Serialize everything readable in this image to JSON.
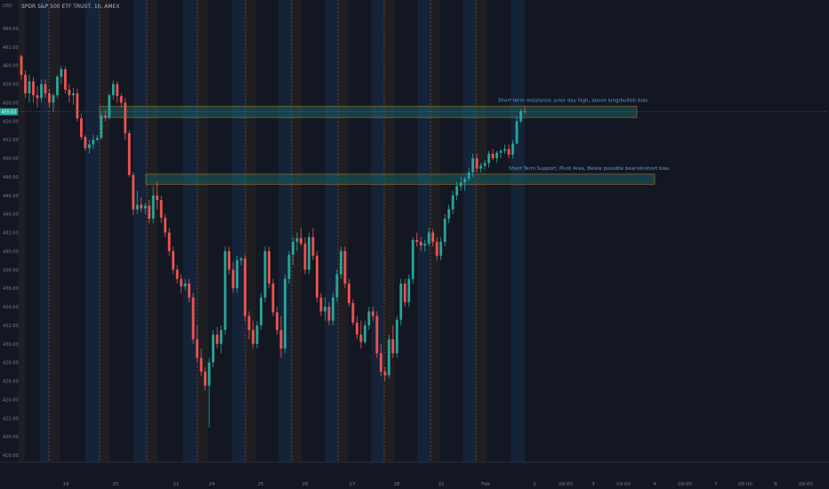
{
  "header": {
    "currency": "USD",
    "title": "SPDR S&P 500 ETF TRUST, 1h, AMEX"
  },
  "chart_data": {
    "type": "candlestick",
    "ylim": [
      416,
      465
    ],
    "y_ticks": [
      418,
      420,
      422,
      424,
      426,
      428,
      430,
      432,
      434,
      436,
      438,
      440,
      442,
      444,
      446,
      448,
      450,
      452,
      454,
      456,
      458,
      460,
      462,
      464
    ],
    "x_ticks": [
      "19",
      "20",
      "21",
      "24",
      "25",
      "26",
      "27",
      "28",
      "31",
      "Feb",
      "2",
      "09:00",
      "3",
      "09:00",
      "4",
      "09:00",
      "7",
      "09:00",
      "8",
      "09:00"
    ],
    "last_price": "455.02",
    "session_hours_per_day": 16,
    "trading_days": [
      "18",
      "19",
      "20",
      "21",
      "24",
      "25",
      "26",
      "27",
      "28",
      "31",
      "Feb 1"
    ],
    "candles_ohlc": [
      [
        461.0,
        461.2,
        458.5,
        459.0
      ],
      [
        459.0,
        459.5,
        456.5,
        457.0
      ],
      [
        457.0,
        459.0,
        456.0,
        458.3
      ],
      [
        458.3,
        458.8,
        456.0,
        456.8
      ],
      [
        456.8,
        457.8,
        455.5,
        456.5
      ],
      [
        456.5,
        458.5,
        456.0,
        458.0
      ],
      [
        458.0,
        458.5,
        456.5,
        457.0
      ],
      [
        457.0,
        457.5,
        455.5,
        456.0
      ],
      [
        456.0,
        457.0,
        455.0,
        456.8
      ],
      [
        456.8,
        459.0,
        456.5,
        458.8
      ],
      [
        458.8,
        460.0,
        458.0,
        459.6
      ],
      [
        459.6,
        459.9,
        457.0,
        457.4
      ],
      [
        457.4,
        458.0,
        456.0,
        456.8
      ],
      [
        456.8,
        457.6,
        455.8,
        457.0
      ],
      [
        457.0,
        457.5,
        454.0,
        454.3
      ],
      [
        454.3,
        454.8,
        452.0,
        452.3
      ],
      [
        452.3,
        452.5,
        450.8,
        451.1
      ],
      [
        451.1,
        452.0,
        450.5,
        451.5
      ],
      [
        451.5,
        452.5,
        451.0,
        452.0
      ],
      [
        452.0,
        452.5,
        451.8,
        452.2
      ],
      [
        452.2,
        455.0,
        452.0,
        454.6
      ],
      [
        454.6,
        455.2,
        454.0,
        454.4
      ],
      [
        454.4,
        457.0,
        454.2,
        456.8
      ],
      [
        456.8,
        458.4,
        456.3,
        458.0
      ],
      [
        458.0,
        458.3,
        456.0,
        456.7
      ],
      [
        456.7,
        457.0,
        455.5,
        456.0
      ],
      [
        456.0,
        456.5,
        452.0,
        452.7
      ],
      [
        452.7,
        453.0,
        448.0,
        448.2
      ],
      [
        448.2,
        448.5,
        443.9,
        444.5
      ],
      [
        444.5,
        446.5,
        444.0,
        445.0
      ],
      [
        445.0,
        445.8,
        444.2,
        444.6
      ],
      [
        444.6,
        445.2,
        444.0,
        444.9
      ],
      [
        444.9,
        445.5,
        443.0,
        443.5
      ],
      [
        443.5,
        447.0,
        443.0,
        446.0
      ],
      [
        446.0,
        447.5,
        444.5,
        445.5
      ],
      [
        445.5,
        446.0,
        443.0,
        443.6
      ],
      [
        443.6,
        444.0,
        441.5,
        442.0
      ],
      [
        442.0,
        442.5,
        439.5,
        440.0
      ],
      [
        440.0,
        440.5,
        437.5,
        438.0
      ],
      [
        438.0,
        438.5,
        436.5,
        437.0
      ],
      [
        437.0,
        437.5,
        435.5,
        436.2
      ],
      [
        436.2,
        437.0,
        435.8,
        436.5
      ],
      [
        436.5,
        437.0,
        434.5,
        435.0
      ],
      [
        435.0,
        435.5,
        430.0,
        430.5
      ],
      [
        430.5,
        432.0,
        428.0,
        428.5
      ],
      [
        428.5,
        429.5,
        426.5,
        427.0
      ],
      [
        427.0,
        427.5,
        425.0,
        425.5
      ],
      [
        425.5,
        428.5,
        421.0,
        428.0
      ],
      [
        428.0,
        431.5,
        427.5,
        431.0
      ],
      [
        431.0,
        431.8,
        429.5,
        430.0
      ],
      [
        430.0,
        432.0,
        429.0,
        431.5
      ],
      [
        431.5,
        440.5,
        431.0,
        440.0
      ],
      [
        440.0,
        440.5,
        437.5,
        438.0
      ],
      [
        438.0,
        438.8,
        435.5,
        436.0
      ],
      [
        436.0,
        439.5,
        435.5,
        439.0
      ],
      [
        439.0,
        439.4,
        438.5,
        439.2
      ],
      [
        439.2,
        439.6,
        432.5,
        433.0
      ],
      [
        433.0,
        433.5,
        430.5,
        431.5
      ],
      [
        431.5,
        432.5,
        429.5,
        430.0
      ],
      [
        430.0,
        432.5,
        429.5,
        432.0
      ],
      [
        432.0,
        435.5,
        431.5,
        435.0
      ],
      [
        435.0,
        440.5,
        434.5,
        440.0
      ],
      [
        440.0,
        440.5,
        436.0,
        436.5
      ],
      [
        436.5,
        437.0,
        433.0,
        433.4
      ],
      [
        433.4,
        434.0,
        431.0,
        431.5
      ],
      [
        431.5,
        433.0,
        428.5,
        429.5
      ],
      [
        429.5,
        437.5,
        429.0,
        437.0
      ],
      [
        437.0,
        440.0,
        436.5,
        439.6
      ],
      [
        439.6,
        441.5,
        438.5,
        441.0
      ],
      [
        441.0,
        442.0,
        440.0,
        441.4
      ],
      [
        441.4,
        442.5,
        440.5,
        440.8
      ],
      [
        440.8,
        441.5,
        437.5,
        438.0
      ],
      [
        438.0,
        442.0,
        437.5,
        441.5
      ],
      [
        441.5,
        442.5,
        439.0,
        439.5
      ],
      [
        439.5,
        440.0,
        434.5,
        435.0
      ],
      [
        435.0,
        435.5,
        433.0,
        433.5
      ],
      [
        433.5,
        435.0,
        432.5,
        434.0
      ],
      [
        434.0,
        434.5,
        432.0,
        432.5
      ],
      [
        432.5,
        435.5,
        432.0,
        435.0
      ],
      [
        435.0,
        438.0,
        434.5,
        437.5
      ],
      [
        437.5,
        440.5,
        437.0,
        440.0
      ],
      [
        440.0,
        440.5,
        436.0,
        436.5
      ],
      [
        436.5,
        437.0,
        434.0,
        434.4
      ],
      [
        434.4,
        434.8,
        432.0,
        432.3
      ],
      [
        432.3,
        433.0,
        430.5,
        431.0
      ],
      [
        431.0,
        432.5,
        429.5,
        430.2
      ],
      [
        430.2,
        432.5,
        430.0,
        432.0
      ],
      [
        432.0,
        434.0,
        431.5,
        433.5
      ],
      [
        433.5,
        434.0,
        432.5,
        433.0
      ],
      [
        433.0,
        433.5,
        428.5,
        429.0
      ],
      [
        429.0,
        430.0,
        426.5,
        427.0
      ],
      [
        427.0,
        427.5,
        426.0,
        426.6
      ],
      [
        426.6,
        431.0,
        426.3,
        430.5
      ],
      [
        430.5,
        432.0,
        428.5,
        429.0
      ],
      [
        429.0,
        433.0,
        428.5,
        432.6
      ],
      [
        432.6,
        437.0,
        432.0,
        436.5
      ],
      [
        436.5,
        437.0,
        434.0,
        434.5
      ],
      [
        434.5,
        437.5,
        434.0,
        437.0
      ],
      [
        437.0,
        441.5,
        436.5,
        441.2
      ],
      [
        441.2,
        442.0,
        440.5,
        441.0
      ],
      [
        441.0,
        441.5,
        440.0,
        440.6
      ],
      [
        440.6,
        441.2,
        440.0,
        440.8
      ],
      [
        440.8,
        442.5,
        440.5,
        442.0
      ],
      [
        442.0,
        442.4,
        440.5,
        441.0
      ],
      [
        441.0,
        441.5,
        439.0,
        439.5
      ],
      [
        439.5,
        441.5,
        439.0,
        441.0
      ],
      [
        441.0,
        444.0,
        440.5,
        443.5
      ],
      [
        443.5,
        445.0,
        443.0,
        444.5
      ],
      [
        444.5,
        446.5,
        444.0,
        446.0
      ],
      [
        446.0,
        447.5,
        445.5,
        447.0
      ],
      [
        447.0,
        448.0,
        446.5,
        447.4
      ],
      [
        447.4,
        448.0,
        446.5,
        447.8
      ],
      [
        447.8,
        449.0,
        447.5,
        448.5
      ],
      [
        448.5,
        450.5,
        448.0,
        450.0
      ],
      [
        450.0,
        450.5,
        448.5,
        448.9
      ],
      [
        448.9,
        449.5,
        448.5,
        449.2
      ],
      [
        449.2,
        449.8,
        448.8,
        449.5
      ],
      [
        449.5,
        450.8,
        449.0,
        450.5
      ],
      [
        450.5,
        451.0,
        449.8,
        450.0
      ],
      [
        450.0,
        450.8,
        449.5,
        450.6
      ],
      [
        450.6,
        451.0,
        450.0,
        450.8
      ],
      [
        450.8,
        451.5,
        450.5,
        451.0
      ],
      [
        451.0,
        451.5,
        450.0,
        450.4
      ],
      [
        450.4,
        452.0,
        450.0,
        451.6
      ],
      [
        451.6,
        454.5,
        451.5,
        454.0
      ],
      [
        454.0,
        455.3,
        453.8,
        455.1
      ],
      [
        455.1,
        455.5,
        454.8,
        455.02
      ]
    ],
    "zones": [
      {
        "label": "Short term resistance, prior day high, above long/bullish bias",
        "from": 454.4,
        "to": 455.6
      },
      {
        "label": "Short Term Support, Pivot Area, Below possible bearish/short bias",
        "from": 447.2,
        "to": 448.3
      }
    ]
  },
  "colors": {
    "background": "#131722",
    "up": "#26a69a",
    "down": "#ef5350",
    "blue_session": "#16253c",
    "orange_session": "#2a2423",
    "zone_fill": "#1b5e63",
    "zone_border": "#d4a72c",
    "annotation": "#5b9bd5",
    "axis_text": "#787b86",
    "last_price_bg": "#26a69a"
  }
}
